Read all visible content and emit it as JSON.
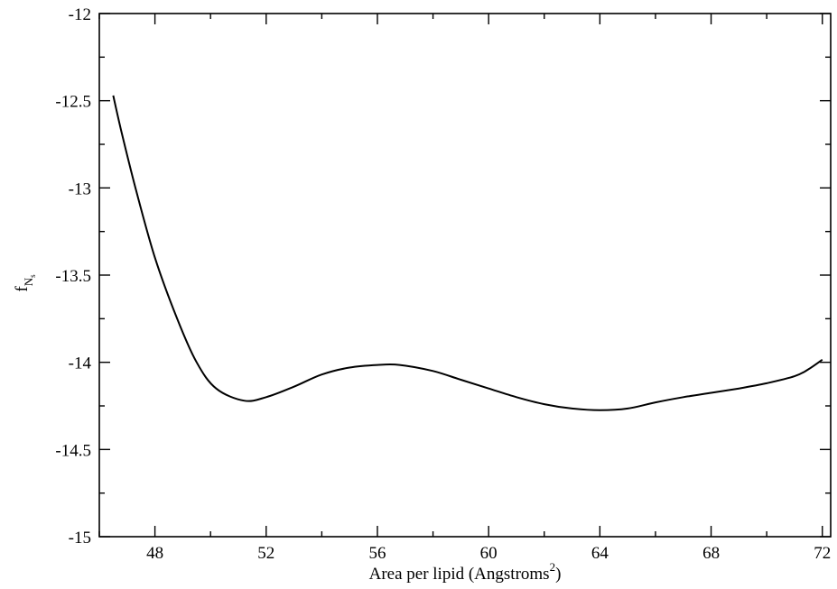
{
  "chart_data": {
    "type": "line",
    "title": "",
    "xlabel": {
      "prefix": "Area per lipid (Angstroms",
      "superscript": "2",
      "suffix": ")"
    },
    "ylabel": {
      "base": "f",
      "subscript": "N",
      "subsub": "s"
    },
    "xlim": [
      46,
      72.3
    ],
    "ylim": [
      -15,
      -12
    ],
    "x_ticks": [
      48,
      52,
      56,
      60,
      64,
      68,
      72
    ],
    "x_tick_labels": [
      "48",
      "52",
      "56",
      "60",
      "64",
      "68",
      "72"
    ],
    "y_ticks": [
      -15,
      -14.5,
      -14,
      -13.5,
      -13,
      -12.5,
      -12
    ],
    "y_tick_labels": [
      "-15",
      "-14.5",
      "-14",
      "-13.5",
      "-13",
      "-12.5",
      "-12"
    ],
    "grid": false,
    "legend": "none",
    "line_color": "#000000",
    "series": [
      {
        "x": [
          46.5,
          46.8,
          47.3,
          48.0,
          48.8,
          49.5,
          50.2,
          51.2,
          52.0,
          53.0,
          54.0,
          55.0,
          56.0,
          56.8,
          58.0,
          59.0,
          60.0,
          61.0,
          62.0,
          63.0,
          64.0,
          65.0,
          66.0,
          67.0,
          68.0,
          69.0,
          70.0,
          71.0,
          71.5,
          72.0
        ],
        "y": [
          -12.47,
          -12.68,
          -13.0,
          -13.4,
          -13.75,
          -14.0,
          -14.15,
          -14.22,
          -14.2,
          -14.14,
          -14.07,
          -14.03,
          -14.015,
          -14.015,
          -14.05,
          -14.1,
          -14.15,
          -14.2,
          -14.24,
          -14.265,
          -14.275,
          -14.265,
          -14.23,
          -14.2,
          -14.175,
          -14.15,
          -14.12,
          -14.08,
          -14.04,
          -13.985
        ]
      }
    ]
  }
}
